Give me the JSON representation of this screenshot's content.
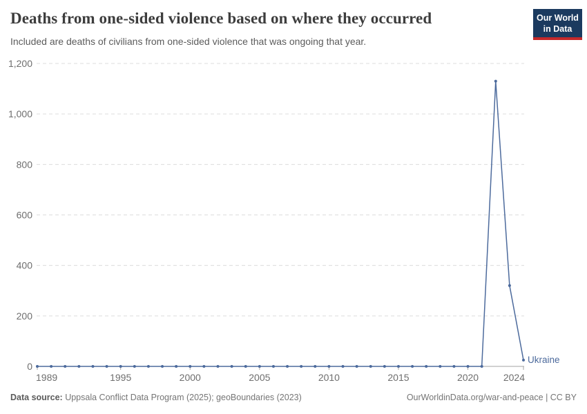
{
  "header": {
    "title": "Deaths from one-sided violence based on where they occurred",
    "subtitle": "Included are deaths of civilians from one-sided violence that was ongoing that year.",
    "logo": {
      "line1": "Our World",
      "line2": "in Data"
    }
  },
  "chart_data": {
    "type": "line",
    "title": "Deaths from one-sided violence based on where they occurred",
    "xlabel": "",
    "ylabel": "",
    "x": [
      1989,
      1990,
      1991,
      1992,
      1993,
      1994,
      1995,
      1996,
      1997,
      1998,
      1999,
      2000,
      2001,
      2002,
      2003,
      2004,
      2005,
      2006,
      2007,
      2008,
      2009,
      2010,
      2011,
      2012,
      2013,
      2014,
      2015,
      2016,
      2017,
      2018,
      2019,
      2020,
      2021,
      2022,
      2023,
      2024
    ],
    "series": [
      {
        "name": "Ukraine",
        "color": "#4c6a9c",
        "values": [
          0,
          0,
          0,
          0,
          0,
          0,
          0,
          0,
          0,
          0,
          0,
          0,
          0,
          0,
          0,
          0,
          0,
          0,
          0,
          0,
          0,
          0,
          0,
          0,
          0,
          0,
          0,
          0,
          0,
          0,
          0,
          0,
          0,
          1130,
          320,
          25
        ]
      }
    ],
    "ylim": [
      0,
      1200
    ],
    "yticks": [
      {
        "value": 0,
        "label": "0"
      },
      {
        "value": 200,
        "label": "200"
      },
      {
        "value": 400,
        "label": "400"
      },
      {
        "value": 600,
        "label": "600"
      },
      {
        "value": 800,
        "label": "800"
      },
      {
        "value": 1000,
        "label": "1,000"
      },
      {
        "value": 1200,
        "label": "1,200"
      }
    ],
    "xticks": [
      {
        "value": 1989,
        "label": "1989"
      },
      {
        "value": 1995,
        "label": "1995"
      },
      {
        "value": 2000,
        "label": "2000"
      },
      {
        "value": 2005,
        "label": "2005"
      },
      {
        "value": 2010,
        "label": "2010"
      },
      {
        "value": 2015,
        "label": "2015"
      },
      {
        "value": 2020,
        "label": "2020"
      },
      {
        "value": 2024,
        "label": "2024"
      }
    ],
    "grid": "horizontal-dashed",
    "legend_position": "end-of-line",
    "end_label": "Ukraine"
  },
  "footer": {
    "source_label": "Data source:",
    "source_text": " Uppsala Conflict Data Program (2025); geoBoundaries (2023)",
    "right_text": "OurWorldinData.org/war-and-peace | CC BY"
  },
  "colors": {
    "line": "#4c6a9c",
    "marker": "#4c6a9c",
    "end_label": "#4c6a9c",
    "grid": "#dcdcdc",
    "axis": "#a3a3a3",
    "tick_text": "#6e6e6e",
    "title_text": "#3d3d3d",
    "subtitle_text": "#5b5b5b",
    "logo_bg": "#1b3a5f",
    "logo_accent": "#c5292a"
  }
}
